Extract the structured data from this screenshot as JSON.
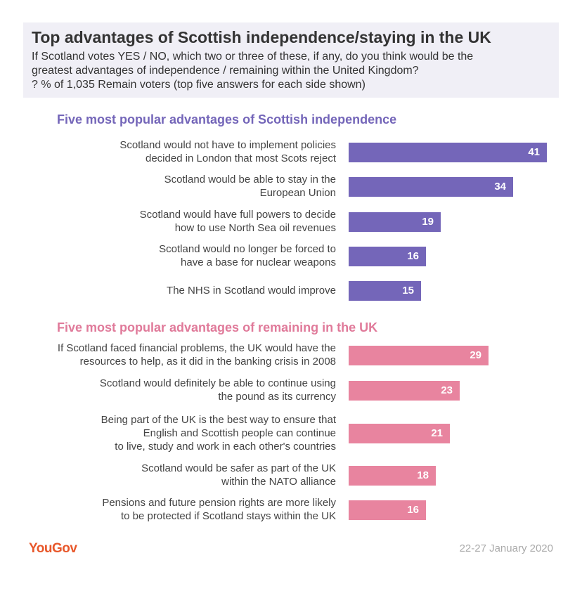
{
  "header": {
    "title": "Top advantages of Scottish independence/staying in the UK",
    "subtitle_lines": [
      "If Scotland votes YES / NO, which two or three of these, if any, do you think would be the",
      "greatest advantages of independence / remaining within the United Kingdom?",
      "? % of 1,035 Remain voters (top five answers for each side shown)"
    ]
  },
  "chart_data": {
    "type": "bar",
    "orientation": "horizontal",
    "xlim": [
      0,
      41
    ],
    "colors": {
      "independence": "#7466b9",
      "remain": "#e8849f"
    },
    "sections": [
      {
        "heading": "Five most popular advantages of Scottish independence",
        "color": "#7466b9",
        "items": [
          {
            "label_lines": [
              "Scotland would not have to implement policies",
              "decided in London that most Scots reject"
            ],
            "value": 41
          },
          {
            "label_lines": [
              "Scotland would be able to stay in the",
              "European Union"
            ],
            "value": 34
          },
          {
            "label_lines": [
              "Scotland would have full powers to decide",
              "how to use North Sea oil revenues"
            ],
            "value": 19
          },
          {
            "label_lines": [
              "Scotland would no longer be forced to",
              "have a base for nuclear weapons"
            ],
            "value": 16
          },
          {
            "label_lines": [
              "The NHS in Scotland would improve"
            ],
            "value": 15
          }
        ]
      },
      {
        "heading": "Five most popular advantages of remaining in the UK",
        "color": "#e8849f",
        "items": [
          {
            "label_lines": [
              "If Scotland faced financial problems, the UK would have the",
              "resources to help, as it did in the banking crisis in 2008"
            ],
            "value": 29
          },
          {
            "label_lines": [
              "Scotland would definitely be able to continue using",
              "the pound as its currency"
            ],
            "value": 23
          },
          {
            "label_lines": [
              "Being part of the UK is the best way to ensure that",
              "English and Scottish people can continue",
              "to live, study and work in each other's countries"
            ],
            "value": 21
          },
          {
            "label_lines": [
              "Scotland would be safer as part of the UK",
              "within the NATO alliance"
            ],
            "value": 18
          },
          {
            "label_lines": [
              "Pensions and future pension rights are more likely",
              "to be protected if Scotland stays within the UK"
            ],
            "value": 16
          }
        ]
      }
    ]
  },
  "footer": {
    "logo": "YouGov",
    "date": "22-27 January 2020"
  }
}
